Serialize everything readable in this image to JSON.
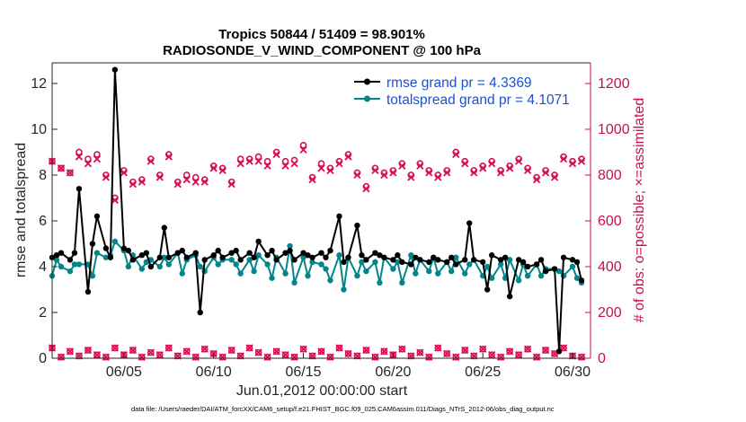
{
  "chart_data": {
    "type": "line",
    "title": "Tropics 50844 / 51409 = 98.901%",
    "subtitle": "RADIOSONDE_V_WIND_COMPONENT @ 100 hPa",
    "xlabel": "Jun.01,2012 00:00:00 start",
    "ylabel": "rmse and totalspread",
    "ylabel_right": "# of obs: o=possible; ×=assimilated",
    "footnote": "data file: /Users/raeder/DAI/ATM_forcXX/CAM6_setup/f.e21.FHIST_BGC.f09_025.CAM6assim.011/Diags_NTrS_2012-06/obs_diag_output.nc",
    "xlim": [
      1,
      31
    ],
    "ylim": [
      0,
      12.9
    ],
    "ylim_right": [
      0,
      1290
    ],
    "x_tick_values": [
      5,
      10,
      15,
      20,
      25,
      30
    ],
    "x_tick_labels": [
      "06/05",
      "06/10",
      "06/15",
      "06/20",
      "06/25",
      "06/30"
    ],
    "y_tick_values": [
      0,
      2,
      4,
      6,
      8,
      10,
      12
    ],
    "y_tick_labels": [
      "0",
      "2",
      "4",
      "6",
      "8",
      "10",
      "12"
    ],
    "y_right_tick_values": [
      0,
      200,
      400,
      600,
      800,
      1000,
      1200
    ],
    "y_right_tick_labels": [
      "0",
      "200",
      "400",
      "600",
      "800",
      "1000",
      "1200"
    ],
    "legend_position": "top-right",
    "colors": {
      "rmse": "#000000",
      "totalspread": "#00868b",
      "obs": "#d3124f",
      "legend_text": "#1a4fd8",
      "right_axis": "#c8104a"
    },
    "x": [
      1.0,
      1.25,
      1.5,
      2.0,
      2.25,
      2.5,
      3.0,
      3.25,
      3.5,
      4.0,
      4.25,
      4.5,
      5.0,
      5.25,
      5.5,
      6.0,
      6.25,
      6.5,
      7.0,
      7.25,
      7.5,
      8.0,
      8.25,
      8.5,
      9.0,
      9.25,
      9.5,
      10.0,
      10.25,
      10.5,
      11.0,
      11.25,
      11.5,
      12.0,
      12.25,
      12.5,
      13.0,
      13.25,
      13.5,
      14.0,
      14.25,
      14.5,
      15.0,
      15.25,
      15.5,
      16.0,
      16.25,
      16.5,
      17.0,
      17.25,
      17.5,
      18.0,
      18.25,
      18.5,
      19.0,
      19.25,
      19.5,
      20.0,
      20.25,
      20.5,
      21.0,
      21.25,
      21.5,
      22.0,
      22.25,
      22.5,
      23.0,
      23.25,
      23.5,
      24.0,
      24.25,
      24.5,
      25.0,
      25.25,
      25.5,
      26.0,
      26.25,
      26.5,
      27.0,
      27.25,
      27.5,
      28.0,
      28.25,
      28.5,
      29.0,
      29.25,
      29.5,
      30.0,
      30.25,
      30.5
    ],
    "series": [
      {
        "name": "rmse grand pr = 4.3369",
        "values": [
          4.4,
          4.5,
          4.6,
          4.3,
          4.6,
          7.4,
          2.9,
          5.0,
          6.2,
          4.8,
          4.4,
          12.6,
          4.8,
          4.7,
          4.3,
          4.5,
          4.6,
          4.0,
          4.4,
          5.7,
          4.4,
          4.6,
          4.7,
          4.4,
          4.6,
          2.0,
          4.3,
          4.5,
          4.7,
          4.4,
          4.6,
          4.7,
          4.3,
          4.6,
          4.4,
          5.1,
          4.5,
          4.7,
          4.3,
          4.6,
          4.7,
          4.3,
          4.6,
          4.5,
          4.4,
          4.6,
          4.4,
          4.7,
          6.2,
          4.2,
          4.4,
          5.8,
          4.5,
          4.3,
          4.6,
          4.5,
          4.4,
          4.3,
          4.5,
          4.2,
          4.1,
          4.4,
          4.3,
          4.2,
          4.4,
          4.3,
          4.2,
          4.4,
          4.1,
          4.3,
          5.9,
          4.3,
          4.2,
          3.0,
          4.5,
          4.3,
          4.4,
          2.7,
          4.3,
          4.2,
          4.0,
          4.1,
          4.3,
          3.8,
          3.9,
          0.3,
          4.4,
          4.3,
          4.2,
          3.4
        ],
        "color": "#000000"
      },
      {
        "name": "totalspread grand pr = 4.1071",
        "values": [
          3.6,
          4.3,
          4.0,
          3.8,
          4.1,
          4.1,
          4.1,
          3.6,
          4.6,
          4.4,
          4.5,
          5.1,
          4.7,
          4.0,
          4.5,
          3.9,
          4.2,
          4.3,
          4.0,
          4.4,
          4.1,
          4.6,
          3.7,
          4.3,
          4.5,
          4.0,
          3.8,
          4.4,
          4.1,
          4.3,
          4.3,
          4.1,
          3.7,
          4.3,
          3.8,
          4.5,
          4.1,
          3.5,
          4.4,
          3.7,
          4.9,
          3.3,
          4.4,
          3.6,
          4.2,
          4.1,
          3.9,
          3.4,
          4.5,
          3.0,
          4.4,
          3.6,
          4.2,
          3.8,
          4.2,
          3.3,
          4.4,
          3.9,
          4.2,
          3.3,
          4.5,
          3.7,
          4.3,
          3.8,
          4.4,
          3.7,
          4.2,
          3.8,
          4.4,
          3.7,
          4.1,
          4.3,
          3.6,
          4.0,
          3.5,
          4.1,
          3.5,
          4.3,
          3.4,
          4.1,
          3.6,
          4.1,
          3.6,
          3.9,
          3.9,
          3.8,
          3.6,
          4.0,
          3.5,
          3.3
        ],
        "color": "#00868b"
      }
    ],
    "obs_x": [
      1.0,
      1.5,
      2.0,
      2.5,
      3.0,
      3.5,
      4.0,
      4.5,
      5.0,
      5.5,
      6.0,
      6.5,
      7.0,
      7.5,
      8.0,
      8.5,
      9.0,
      9.5,
      10.0,
      10.5,
      11.0,
      11.5,
      12.0,
      12.5,
      13.0,
      13.5,
      14.0,
      14.5,
      15.0,
      15.5,
      16.0,
      16.5,
      17.0,
      17.5,
      18.0,
      18.5,
      19.0,
      19.5,
      20.0,
      20.5,
      21.0,
      21.5,
      22.0,
      22.5,
      23.0,
      23.5,
      24.0,
      24.5,
      25.0,
      25.5,
      26.0,
      26.5,
      27.0,
      27.5,
      28.0,
      28.5,
      29.0,
      29.5,
      30.0,
      30.5
    ],
    "obs_possible": [
      860,
      830,
      810,
      900,
      870,
      890,
      800,
      700,
      820,
      770,
      780,
      870,
      800,
      890,
      770,
      800,
      790,
      780,
      840,
      830,
      770,
      870,
      870,
      880,
      860,
      900,
      860,
      865,
      930,
      790,
      850,
      830,
      860,
      890,
      810,
      750,
      830,
      810,
      820,
      850,
      800,
      850,
      820,
      800,
      820,
      900,
      860,
      820,
      840,
      860,
      820,
      840,
      870,
      830,
      790,
      820,
      800,
      880,
      860,
      870
    ],
    "obs_assimilated": [
      860,
      830,
      810,
      880,
      850,
      870,
      790,
      690,
      810,
      760,
      770,
      860,
      790,
      880,
      760,
      780,
      770,
      770,
      830,
      820,
      760,
      850,
      860,
      860,
      840,
      890,
      840,
      850,
      910,
      780,
      830,
      820,
      850,
      880,
      800,
      740,
      820,
      800,
      810,
      840,
      790,
      840,
      810,
      790,
      810,
      890,
      850,
      810,
      830,
      850,
      810,
      830,
      860,
      820,
      780,
      810,
      790,
      870,
      850,
      860
    ],
    "obs_low_x": [
      1.0,
      1.5,
      2.0,
      2.5,
      3.0,
      3.5,
      4.0,
      4.5,
      5.0,
      5.5,
      6.0,
      6.5,
      7.0,
      7.5,
      8.0,
      8.5,
      9.0,
      9.5,
      10.0,
      10.5,
      11.0,
      11.5,
      12.0,
      12.5,
      13.0,
      13.5,
      14.0,
      14.5,
      15.0,
      15.5,
      16.0,
      16.5,
      17.0,
      17.5,
      18.0,
      18.5,
      19.0,
      19.5,
      20.0,
      20.5,
      21.0,
      21.5,
      22.0,
      22.5,
      23.0,
      23.5,
      24.0,
      24.5,
      25.0,
      25.5,
      26.0,
      26.5,
      27.0,
      27.5,
      28.0,
      28.5,
      29.0,
      29.5,
      30.0,
      30.5
    ],
    "obs_low": [
      45,
      5,
      30,
      10,
      35,
      15,
      5,
      45,
      15,
      35,
      5,
      25,
      15,
      45,
      10,
      30,
      5,
      40,
      20,
      5,
      35,
      10,
      45,
      25,
      5,
      30,
      15,
      5,
      40,
      10,
      30,
      5,
      45,
      20,
      10,
      35,
      5,
      30,
      15,
      40,
      10,
      25,
      5,
      45,
      20,
      5,
      35,
      10,
      40,
      15,
      5,
      30,
      15,
      40,
      5,
      35,
      20,
      45,
      10,
      5
    ]
  },
  "legend": {
    "rmse_label": "rmse grand pr = 4.3369",
    "spread_label": "totalspread grand pr = 4.1071"
  }
}
